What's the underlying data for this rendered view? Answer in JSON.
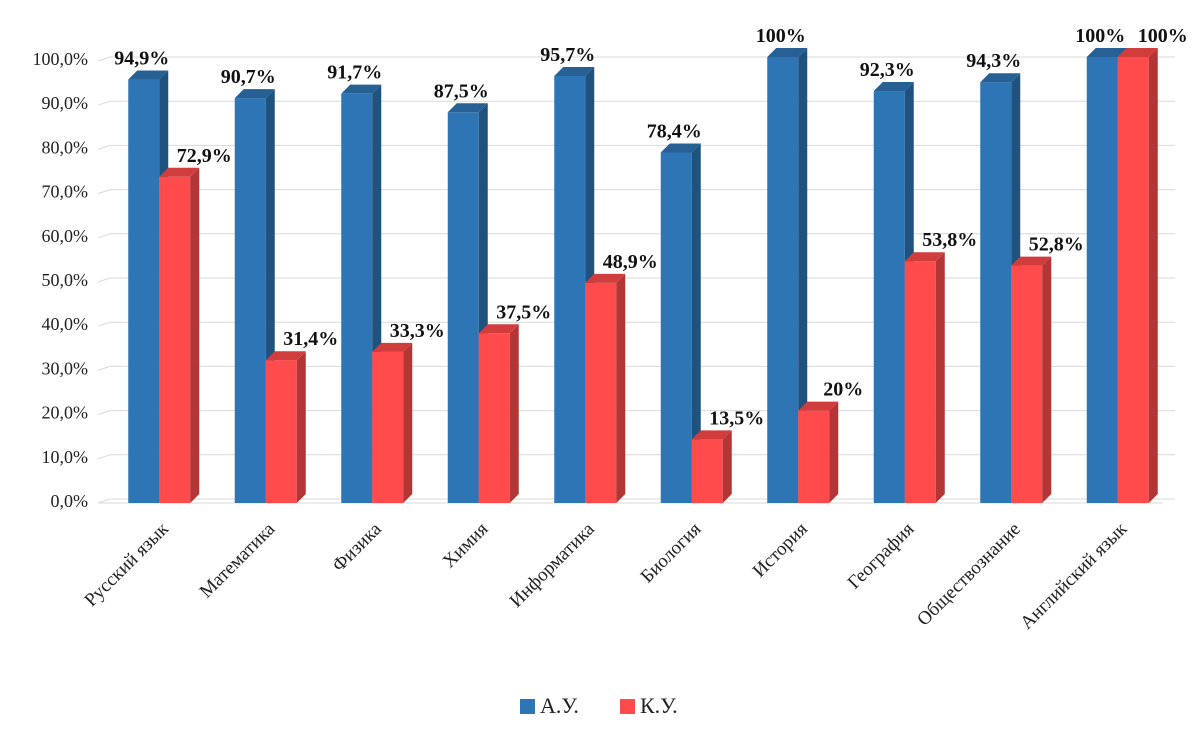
{
  "chart_data": {
    "type": "bar",
    "categories": [
      "Русский язык",
      "Математика",
      "Физика",
      "Химия",
      "Информатика",
      "Биология",
      "История",
      "География",
      "Обществознание",
      "Английский язык"
    ],
    "series": [
      {
        "name": "А.У.",
        "color": "#2e75b6",
        "values": [
          94.9,
          90.7,
          91.7,
          87.5,
          95.7,
          78.4,
          100,
          92.3,
          94.3,
          100
        ],
        "labels": [
          "94,9%",
          "90,7%",
          "91,7%",
          "87,5%",
          "95,7%",
          "78,4%",
          "100%",
          "92,3%",
          "94,3%",
          "100%"
        ]
      },
      {
        "name": "К.У.",
        "color": "#ff4b4b",
        "values": [
          72.9,
          31.4,
          33.3,
          37.5,
          48.9,
          13.5,
          20,
          53.8,
          52.8,
          100
        ],
        "labels": [
          "72,9%",
          "31,4%",
          "33,3%",
          "37,5%",
          "48,9%",
          "13,5%",
          "20%",
          "53,8%",
          "52,8%",
          "100%"
        ]
      }
    ],
    "ylim": [
      0,
      100
    ],
    "yticks": [
      "0,0%",
      "10,0%",
      "20,0%",
      "30,0%",
      "40,0%",
      "50,0%",
      "60,0%",
      "70,0%",
      "80,0%",
      "90,0%",
      "100,0%"
    ],
    "grid": true,
    "legend": "bottom-center",
    "style": "3d-column"
  }
}
